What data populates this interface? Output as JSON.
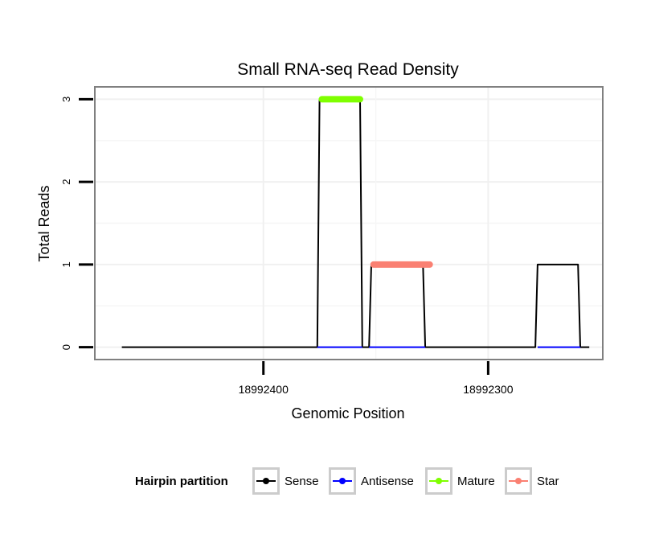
{
  "chart_data": {
    "type": "line",
    "title": "Small RNA-seq Read Density",
    "xlabel": "Genomic Position",
    "ylabel": "Total Reads",
    "x_reversed": true,
    "xlim": [
      18992475,
      18992249
    ],
    "ylim": [
      -0.15,
      3.15
    ],
    "x_ticks": [
      18992400,
      18992300
    ],
    "x_tick_labels": [
      "18992400",
      "18992300"
    ],
    "y_ticks": [
      0,
      1,
      2,
      3
    ],
    "y_tick_labels": [
      "0",
      "1",
      "2",
      "3"
    ],
    "grid": true,
    "legend": {
      "title": "Hairpin partition",
      "position": "bottom",
      "entries": [
        {
          "name": "Sense",
          "color": "#000000"
        },
        {
          "name": "Antisense",
          "color": "#0000ff"
        },
        {
          "name": "Mature",
          "color": "#7fff00"
        },
        {
          "name": "Star",
          "color": "#fa8072"
        }
      ]
    },
    "series": [
      {
        "name": "Sense",
        "color": "#000000",
        "x": [
          18992463,
          18992376,
          18992375,
          18992357,
          18992356,
          18992353,
          18992352,
          18992329,
          18992328,
          18992279,
          18992278,
          18992260,
          18992259,
          18992255
        ],
        "y": [
          0,
          0,
          3,
          3,
          0,
          0,
          1,
          1,
          0,
          0,
          1,
          1,
          0,
          0
        ]
      },
      {
        "name": "Antisense",
        "color": "#0000ff",
        "segments": [
          [
            18992376,
            18992356
          ],
          [
            18992353,
            18992328
          ],
          [
            18992278,
            18992259
          ]
        ],
        "y": 0
      },
      {
        "name": "Mature",
        "color": "#7fff00",
        "x_range": [
          18992374,
          18992357
        ],
        "y": 3
      },
      {
        "name": "Star",
        "color": "#fa8072",
        "x_range": [
          18992351,
          18992326
        ],
        "y": 1
      }
    ]
  }
}
